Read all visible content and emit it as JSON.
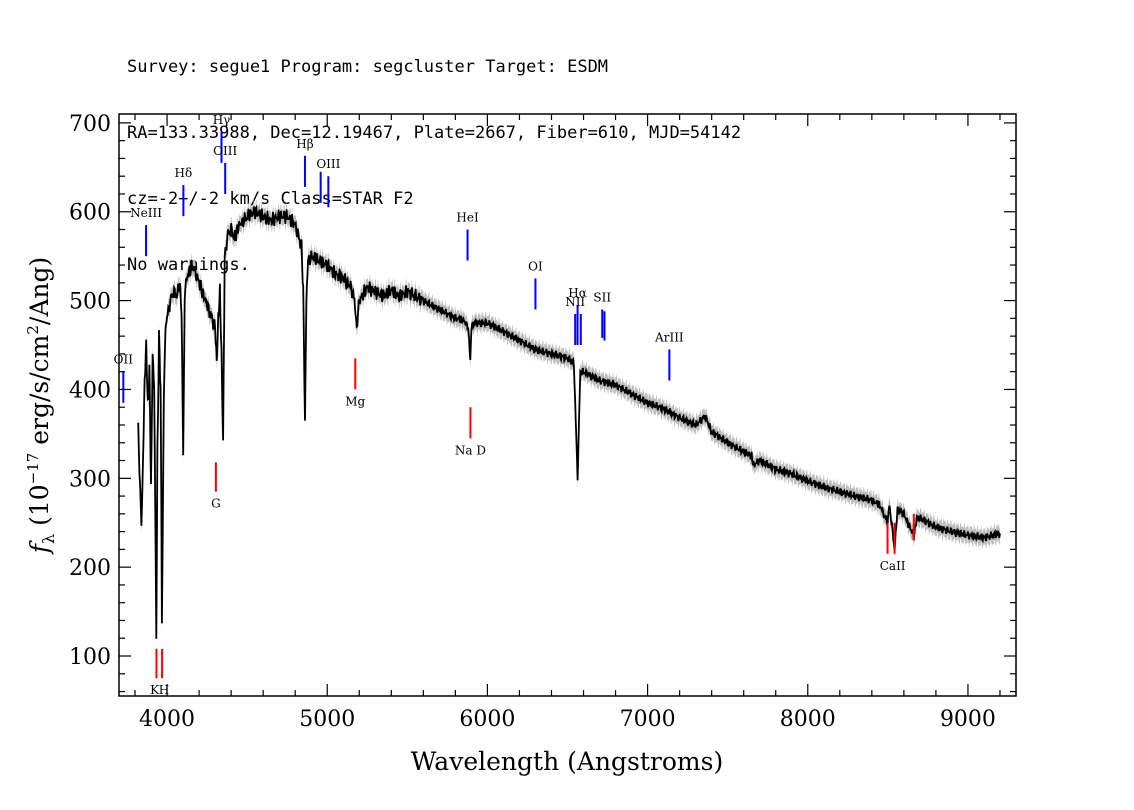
{
  "header": {
    "line1": "Survey: segue1 Program: segcluster Target: ESDM",
    "line2": "RA=133.33988, Dec=12.19467, Plate=2667, Fiber=610, MJD=54142",
    "line3": "cz=-2+/-2 km/s Class=STAR F2",
    "line4": "No warnings."
  },
  "chart_data": {
    "type": "line",
    "xlabel": "Wavelength (Angstroms)",
    "ylabel": "f_λ (10^-17 erg/s/cm^2/Ang)",
    "xlim": [
      3700,
      9300
    ],
    "ylim": [
      55,
      710
    ],
    "x_ticks": [
      4000,
      5000,
      6000,
      7000,
      8000,
      9000
    ],
    "y_ticks": [
      100,
      200,
      300,
      400,
      500,
      600,
      700
    ],
    "series": [
      {
        "color": "#000000",
        "error_band_color": "#bdbdbd",
        "x": [
          3820,
          3840,
          3850,
          3860,
          3870,
          3880,
          3890,
          3900,
          3910,
          3920,
          3933,
          3940,
          3950,
          3960,
          3968,
          3980,
          3990,
          4000,
          4020,
          4040,
          4060,
          4080,
          4090,
          4101,
          4110,
          4130,
          4160,
          4200,
          4230,
          4260,
          4280,
          4300,
          4310,
          4320,
          4330,
          4340,
          4350,
          4360,
          4380,
          4400,
          4420,
          4450,
          4480,
          4500,
          4550,
          4600,
          4650,
          4700,
          4750,
          4800,
          4840,
          4850,
          4861,
          4870,
          4880,
          4900,
          4950,
          5000,
          5050,
          5100,
          5150,
          5170,
          5184,
          5200,
          5250,
          5300,
          5350,
          5400,
          5450,
          5500,
          5600,
          5700,
          5800,
          5850,
          5880,
          5893,
          5900,
          5920,
          6000,
          6100,
          6200,
          6300,
          6400,
          6500,
          6540,
          6563,
          6580,
          6600,
          6700,
          6800,
          6900,
          7000,
          7100,
          7200,
          7300,
          7360,
          7400,
          7500,
          7600,
          7650,
          7660,
          7700,
          7800,
          7900,
          8000,
          8100,
          8200,
          8300,
          8400,
          8450,
          8498,
          8510,
          8542,
          8560,
          8600,
          8662,
          8680,
          8700,
          8800,
          8900,
          9000,
          9100,
          9200
        ],
        "y": [
          355,
          245,
          320,
          410,
          450,
          380,
          420,
          290,
          440,
          400,
          125,
          330,
          460,
          400,
          140,
          390,
          470,
          480,
          500,
          510,
          505,
          520,
          490,
          330,
          510,
          530,
          540,
          520,
          505,
          490,
          480,
          470,
          430,
          480,
          510,
          440,
          340,
          550,
          575,
          580,
          570,
          585,
          590,
          595,
          600,
          595,
          590,
          595,
          595,
          585,
          560,
          510,
          365,
          500,
          545,
          550,
          545,
          540,
          530,
          525,
          515,
          500,
          470,
          500,
          515,
          510,
          505,
          512,
          505,
          510,
          500,
          490,
          480,
          478,
          470,
          430,
          470,
          475,
          475,
          465,
          455,
          445,
          440,
          435,
          430,
          300,
          420,
          420,
          410,
          405,
          395,
          385,
          378,
          368,
          360,
          370,
          352,
          340,
          330,
          325,
          315,
          320,
          310,
          305,
          297,
          290,
          285,
          280,
          275,
          270,
          250,
          270,
          220,
          265,
          260,
          235,
          255,
          255,
          245,
          240,
          236,
          233,
          238
        ]
      }
    ],
    "emission_lines": [
      {
        "label": "NeIII",
        "wavelength": 3869,
        "y_low": 550,
        "y_high": 585
      },
      {
        "label": "OII",
        "wavelength": 3727,
        "y_low": 385,
        "y_high": 420
      },
      {
        "label": "Hδ",
        "wavelength": 4102,
        "y_low": 595,
        "y_high": 630
      },
      {
        "label": "Hγ",
        "wavelength": 4340,
        "y_low": 655,
        "y_high": 690
      },
      {
        "label": "OIII",
        "wavelength": 4363,
        "y_low": 620,
        "y_high": 655
      },
      {
        "label": "Hβ",
        "wavelength": 4861,
        "y_low": 628,
        "y_high": 663
      },
      {
        "label": "OIII",
        "wavelength": 4959,
        "y_low": 610,
        "y_high": 645
      },
      {
        "label": "OIII",
        "wavelength": 5007,
        "y_low": 605,
        "y_high": 640
      },
      {
        "label": "HeI",
        "wavelength": 5876,
        "y_low": 545,
        "y_high": 580
      },
      {
        "label": "OI",
        "wavelength": 6300,
        "y_low": 490,
        "y_high": 525
      },
      {
        "label": "NII",
        "wavelength": 6548,
        "y_low": 450,
        "y_high": 485
      },
      {
        "label": "Hα",
        "wavelength": 6563,
        "y_low": 450,
        "y_high": 495
      },
      {
        "label": "NII",
        "wavelength": 6583,
        "y_low": 450,
        "y_high": 485
      },
      {
        "label": "SII",
        "wavelength": 6717,
        "y_low": 458,
        "y_high": 490
      },
      {
        "label": "SII",
        "wavelength": 6731,
        "y_low": 455,
        "y_high": 488
      },
      {
        "label": "ArIII",
        "wavelength": 7136,
        "y_low": 410,
        "y_high": 445
      }
    ],
    "absorption_lines": [
      {
        "label": "K",
        "wavelength": 3934,
        "y_low": 75,
        "y_high": 108
      },
      {
        "label": "H",
        "wavelength": 3969,
        "y_low": 75,
        "y_high": 108
      },
      {
        "label": "G",
        "wavelength": 4305,
        "y_low": 285,
        "y_high": 318
      },
      {
        "label": "Mg",
        "wavelength": 5175,
        "y_low": 400,
        "y_high": 435
      },
      {
        "label": "Na D",
        "wavelength": 5894,
        "y_low": 345,
        "y_high": 380
      },
      {
        "label": "CaII",
        "wavelength": 8498,
        "y_low": 215,
        "y_high": 250
      },
      {
        "label": "CaII",
        "wavelength": 8542,
        "y_low": 215,
        "y_high": 250
      },
      {
        "label": "CaII",
        "wavelength": 8662,
        "y_low": 230,
        "y_high": 260
      }
    ],
    "emission_color": "#0000ff",
    "absorption_color": "#ff0000",
    "grid": false
  }
}
